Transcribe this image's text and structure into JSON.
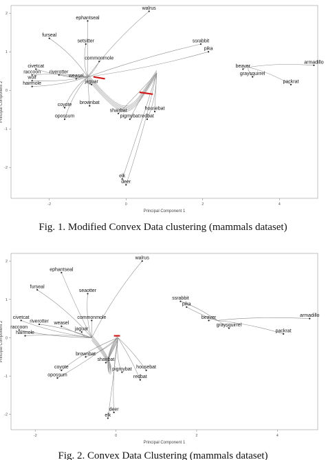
{
  "figure1": {
    "caption": "Fig. 1. Modified Convex Data clustering (mammals dataset)",
    "chart_data": {
      "type": "scatter",
      "xlabel": "Principal Component 1",
      "ylabel": "Principal Component 2",
      "xlim": [
        -3.0,
        5.0
      ],
      "ylim": [
        -2.8,
        2.2
      ],
      "xticks": [
        "-2",
        "0",
        "2",
        "4"
      ],
      "yticks": [
        "2",
        "1",
        "0",
        "-1",
        "-2"
      ],
      "points": [
        {
          "label": "walrus",
          "x": 0.6,
          "y": 2.05
        },
        {
          "label": "ephantseal",
          "x": -1.0,
          "y": 1.8
        },
        {
          "label": "furseal",
          "x": -2.0,
          "y": 1.35
        },
        {
          "label": "setsitter",
          "x": -1.05,
          "y": 1.2
        },
        {
          "label": "ssrabbit",
          "x": 1.95,
          "y": 1.2
        },
        {
          "label": "pika",
          "x": 2.15,
          "y": 1.0
        },
        {
          "label": "armadillo",
          "x": 4.9,
          "y": 0.65
        },
        {
          "label": "commonmole",
          "x": -0.7,
          "y": 0.75
        },
        {
          "label": "beaver",
          "x": 3.05,
          "y": 0.55
        },
        {
          "label": "civetcat",
          "x": -2.35,
          "y": 0.55
        },
        {
          "label": "raccoon",
          "x": -2.45,
          "y": 0.4
        },
        {
          "label": "riverotter",
          "x": -1.75,
          "y": 0.4
        },
        {
          "label": "graysquirrel",
          "x": 3.3,
          "y": 0.35
        },
        {
          "label": "wolf",
          "x": -2.45,
          "y": 0.25
        },
        {
          "label": "weasel",
          "x": -1.3,
          "y": 0.3
        },
        {
          "label": "jaguar",
          "x": -0.9,
          "y": 0.15
        },
        {
          "label": "packrat",
          "x": 4.3,
          "y": 0.15
        },
        {
          "label": "hairmole",
          "x": -2.45,
          "y": 0.1
        },
        {
          "label": "coyote",
          "x": -1.6,
          "y": -0.45
        },
        {
          "label": "brownbat",
          "x": -0.95,
          "y": -0.4
        },
        {
          "label": "shairbat",
          "x": -0.2,
          "y": -0.6
        },
        {
          "label": "pigmybat",
          "x": 0.1,
          "y": -0.75
        },
        {
          "label": "housebat",
          "x": 0.75,
          "y": -0.55
        },
        {
          "label": "redbat",
          "x": 0.55,
          "y": -0.75
        },
        {
          "label": "opossum",
          "x": -1.6,
          "y": -0.75
        },
        {
          "label": "elk",
          "x": -0.1,
          "y": -2.3
        },
        {
          "label": "deer",
          "x": 0.0,
          "y": -2.45
        }
      ]
    }
  },
  "figure2": {
    "caption": "Fig. 2. Convex Data Clustering (mammals dataset)",
    "chart_data": {
      "type": "scatter",
      "xlabel": "Principal Component 1",
      "ylabel": "Principal Component 2",
      "xlim": [
        -2.6,
        5.0
      ],
      "ylim": [
        -2.4,
        2.2
      ],
      "xticks": [
        "-2",
        "0",
        "2",
        "4"
      ],
      "yticks": [
        "2",
        "1",
        "0",
        "-1",
        "-2"
      ],
      "points": [
        {
          "label": "walrus",
          "x": 0.65,
          "y": 2.0
        },
        {
          "label": "ephantseal",
          "x": -1.35,
          "y": 1.7
        },
        {
          "label": "furseal",
          "x": -1.95,
          "y": 1.25
        },
        {
          "label": "seaotter",
          "x": -0.7,
          "y": 1.15
        },
        {
          "label": "ssrabbit",
          "x": 1.6,
          "y": 0.95
        },
        {
          "label": "pika",
          "x": 1.75,
          "y": 0.8
        },
        {
          "label": "armadillo",
          "x": 4.8,
          "y": 0.5
        },
        {
          "label": "commonmole",
          "x": -0.6,
          "y": 0.45
        },
        {
          "label": "beaver",
          "x": 2.3,
          "y": 0.45
        },
        {
          "label": "civetcat",
          "x": -2.35,
          "y": 0.45
        },
        {
          "label": "riverotter",
          "x": -1.9,
          "y": 0.35
        },
        {
          "label": "weasel",
          "x": -1.35,
          "y": 0.3
        },
        {
          "label": "graysquirrel",
          "x": 2.8,
          "y": 0.25
        },
        {
          "label": "raccoon",
          "x": -2.4,
          "y": 0.2
        },
        {
          "label": "hairmole",
          "x": -2.25,
          "y": 0.05
        },
        {
          "label": "jaguar",
          "x": -0.85,
          "y": 0.15
        },
        {
          "label": "packrat",
          "x": 4.15,
          "y": 0.1
        },
        {
          "label": "brownbat",
          "x": -0.75,
          "y": -0.5
        },
        {
          "label": "coyote",
          "x": -1.35,
          "y": -0.85
        },
        {
          "label": "opossum",
          "x": -1.45,
          "y": -1.05
        },
        {
          "label": "shairbat",
          "x": -0.25,
          "y": -0.65
        },
        {
          "label": "pigmybat",
          "x": 0.15,
          "y": -0.9
        },
        {
          "label": "housebat",
          "x": 0.75,
          "y": -0.85
        },
        {
          "label": "redbat",
          "x": 0.6,
          "y": -1.1
        },
        {
          "label": "deer",
          "x": -0.05,
          "y": -1.95
        },
        {
          "label": "elk",
          "x": -0.2,
          "y": -2.1
        }
      ]
    }
  }
}
